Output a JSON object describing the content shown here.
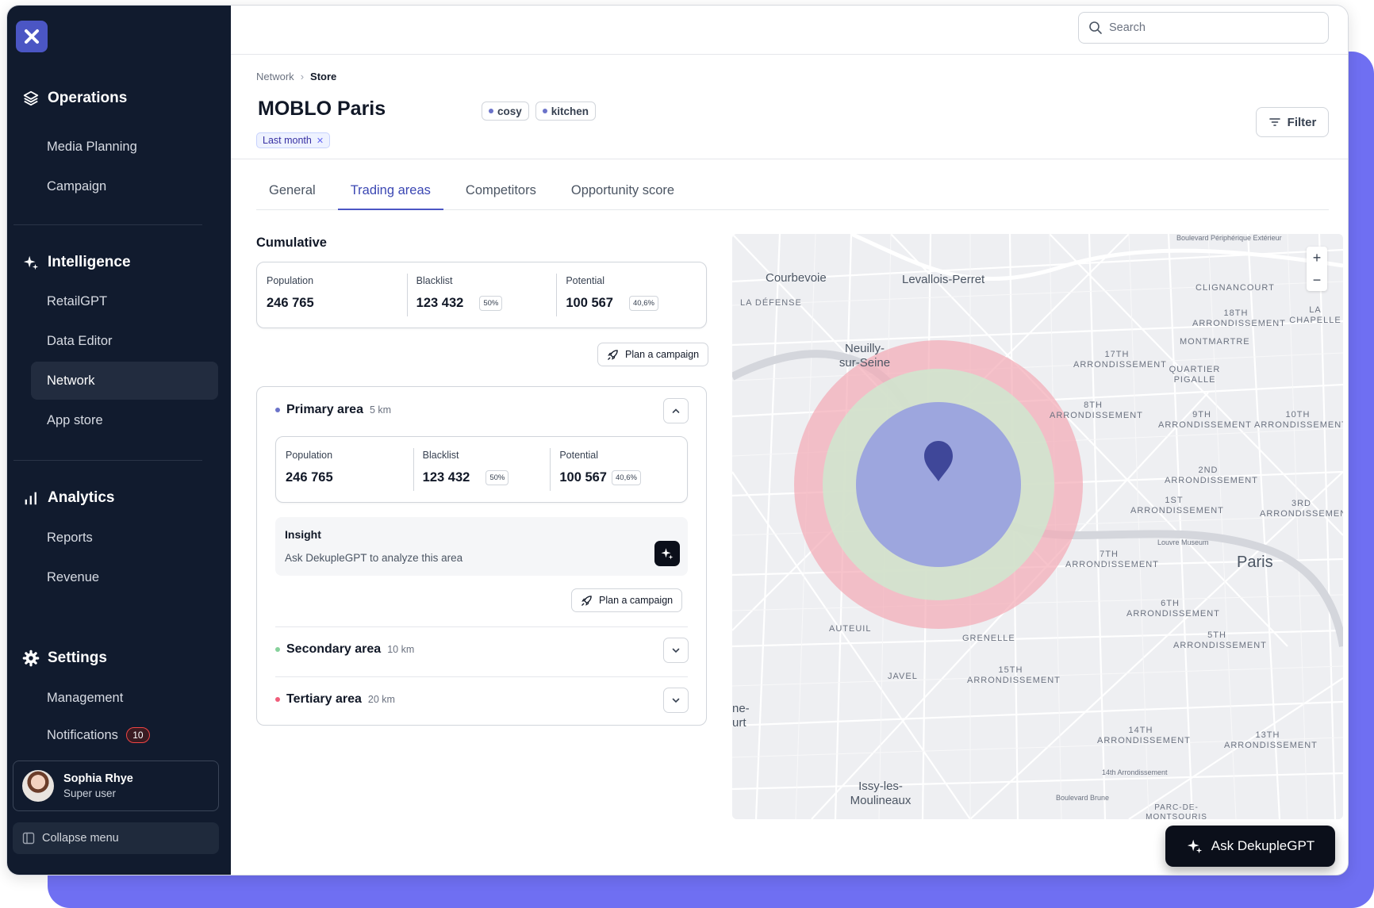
{
  "sidebar": {
    "sections": [
      {
        "title": "Operations",
        "icon": "layers-icon",
        "items": [
          "Media Planning",
          "Campaign"
        ]
      },
      {
        "title": "Intelligence",
        "icon": "sparkles-icon",
        "items": [
          "RetailGPT",
          "Data Editor",
          "Network",
          "App store"
        ]
      },
      {
        "title": "Analytics",
        "icon": "bar-chart-icon",
        "items": [
          "Reports",
          "Revenue"
        ]
      },
      {
        "title": "Settings",
        "icon": "gear-icon",
        "items": [
          "Management",
          "Notifications"
        ]
      }
    ],
    "active_item": "Network",
    "notifications_count": "10",
    "user": {
      "name": "Sophia Rhye",
      "role": "Super user"
    },
    "collapse_label": "Collapse menu"
  },
  "search": {
    "placeholder": "Search",
    "value": ""
  },
  "breadcrumb": {
    "parent": "Network",
    "current": "Store"
  },
  "page": {
    "title": "MOBLO Paris",
    "tags": [
      "cosy",
      "kitchen"
    ],
    "period_chip": "Last month",
    "filter_label": "Filter"
  },
  "tabs": [
    {
      "label": "General",
      "active": false
    },
    {
      "label": "Trading areas",
      "active": true
    },
    {
      "label": "Competitors",
      "active": false
    },
    {
      "label": "Opportunity score",
      "active": false
    }
  ],
  "cumulative": {
    "title": "Cumulative",
    "population_label": "Population",
    "population": "246 765",
    "blacklist_label": "Blacklist",
    "blacklist": "123 432",
    "blacklist_pct": "50%",
    "potential_label": "Potential",
    "potential": "100 567",
    "potential_pct": "40,6%",
    "plan_label": "Plan a campaign"
  },
  "areas": {
    "primary": {
      "name": "Primary area",
      "radius": "5 km",
      "color": "#6b73c9",
      "population_label": "Population",
      "population": "246 765",
      "blacklist_label": "Blacklist",
      "blacklist": "123 432",
      "blacklist_pct": "50%",
      "potential_label": "Potential",
      "potential": "100 567",
      "potential_pct": "40,6%",
      "insight_title": "Insight",
      "insight_text": "Ask DekupleGPT to analyze this area",
      "plan_label": "Plan a campaign"
    },
    "secondary": {
      "name": "Secondary area",
      "radius": "10 km",
      "color": "#86d19b"
    },
    "tertiary": {
      "name": "Tertiary area",
      "radius": "20 km",
      "color": "#f05d7a"
    }
  },
  "map": {
    "places": [
      "Courbevoie",
      "Levallois-Perret",
      "Neuilly-sur-Seine",
      "Paris",
      "Issy-les-Moulineaux",
      "ne-\nurt"
    ],
    "districts": [
      "La Défense",
      "Clignancourt",
      "18th Arrondissement",
      "La Chapelle",
      "Montmartre",
      "17th Arrondissement",
      "Quartier Pigalle",
      "8th Arrondissement",
      "9th Arrondissement",
      "10th Arrondissement",
      "2nd Arrondissement",
      "1st Arrondissement",
      "3rd Arrondissemen",
      "7th Arrondissement",
      "6th Arrondissement",
      "5th Arrondissement",
      "Auteuil",
      "Grenelle",
      "Javel",
      "15th Arrondissement",
      "14th Arrondissement",
      "13th Arrondissement",
      "Parc-de-Montsouris"
    ],
    "streets": [
      "Boulevard Périphérique Extérieur",
      "Louvre Museum",
      "14th Arrondissement",
      "Boulevard Brune"
    ],
    "zoom_in": "+",
    "zoom_out": "−"
  },
  "ask_button": "Ask DekupleGPT"
}
